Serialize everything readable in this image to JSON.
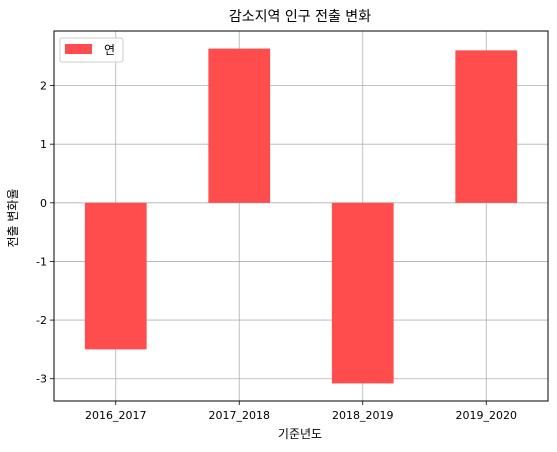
{
  "chart_data": {
    "type": "bar",
    "title": "감소지역 인구 전출 변화",
    "xlabel": "기준년도",
    "ylabel": "전출 변화율",
    "categories": [
      "2016_2017",
      "2017_2018",
      "2018_2019",
      "2019_2020"
    ],
    "series": [
      {
        "name": "연",
        "values": [
          -2.5,
          2.63,
          -3.08,
          2.6
        ],
        "color": "#ff4c4c"
      }
    ],
    "ylim": [
      -3.38,
      2.93
    ],
    "yticks": [
      2,
      1,
      0,
      -1,
      -2,
      -3
    ],
    "ytick_labels": [
      "2",
      "1",
      "0",
      "-1",
      "-2",
      "-3"
    ],
    "grid": true,
    "legend_position": "upper-left"
  }
}
